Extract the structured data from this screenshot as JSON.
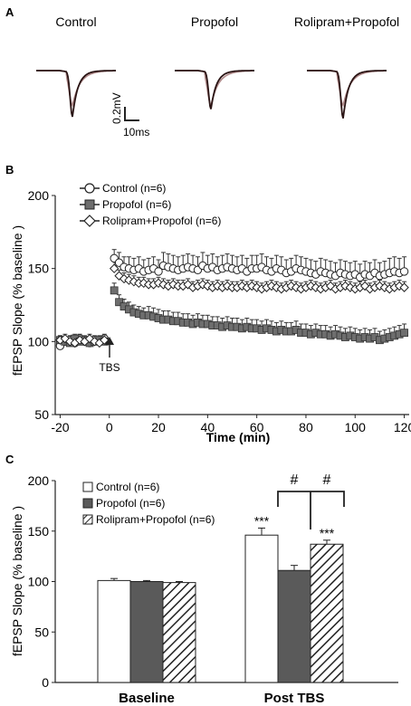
{
  "colors": {
    "control": "#ffffff",
    "propofol": "#5a5a5a",
    "rolipram": "#ffffff",
    "trace_base": "#2a1414",
    "trace_post": "#b08a8a",
    "axis": "#222222"
  },
  "panel_a": {
    "label": "A",
    "traces": [
      {
        "title": "Control",
        "base_peak_mv": -0.6,
        "post_peak_mv": -0.45
      },
      {
        "title": "Propofol",
        "base_peak_mv": -0.5,
        "post_peak_mv": -0.45
      },
      {
        "title": "Rolipram+Propofol",
        "base_peak_mv": -0.62,
        "post_peak_mv": -0.45
      }
    ],
    "scalebar": {
      "voltage": "0.2mV",
      "time": "10ms"
    }
  },
  "chart_data": [
    {
      "panel": "B",
      "type": "scatter",
      "xlabel": "Time (min)",
      "ylabel": "fEPSP Slope (% baseline )",
      "xlim": [
        -22,
        122
      ],
      "ylim": [
        50,
        200
      ],
      "xticks": [
        -20,
        0,
        20,
        40,
        60,
        80,
        100,
        120
      ],
      "yticks": [
        50,
        100,
        150,
        200
      ],
      "annotation": "TBS",
      "annotation_x": 0,
      "legend_position": "top-left",
      "series": [
        {
          "name": "Control (n=6)",
          "marker": "circle",
          "x": [
            -20,
            -18,
            -16,
            -14,
            -12,
            -10,
            -8,
            -6,
            -4,
            -2,
            2,
            4,
            6,
            8,
            10,
            12,
            14,
            16,
            18,
            20,
            22,
            24,
            26,
            28,
            30,
            32,
            34,
            36,
            38,
            40,
            42,
            44,
            46,
            48,
            50,
            52,
            54,
            56,
            58,
            60,
            62,
            64,
            66,
            68,
            70,
            72,
            74,
            76,
            78,
            80,
            82,
            84,
            86,
            88,
            90,
            92,
            94,
            96,
            98,
            100,
            102,
            104,
            106,
            108,
            110,
            112,
            114,
            116,
            118,
            120
          ],
          "y": [
            97,
            100,
            101,
            99,
            102,
            100,
            99,
            101,
            100,
            102,
            157,
            154,
            151,
            150,
            149,
            150,
            148,
            149,
            150,
            148,
            152,
            151,
            150,
            149,
            150,
            151,
            150,
            149,
            152,
            150,
            151,
            149,
            150,
            151,
            150,
            149,
            150,
            148,
            150,
            150,
            151,
            149,
            148,
            150,
            149,
            147,
            148,
            150,
            149,
            148,
            147,
            146,
            148,
            147,
            146,
            145,
            147,
            146,
            145,
            146,
            144,
            146,
            145,
            147,
            145,
            146,
            147,
            148,
            147,
            148
          ],
          "err": [
            3,
            3,
            3,
            3,
            3,
            3,
            3,
            3,
            3,
            3,
            6,
            7,
            7,
            8,
            8,
            8,
            8,
            8,
            8,
            8,
            9,
            9,
            9,
            9,
            9,
            9,
            9,
            9,
            9,
            9,
            9,
            9,
            9,
            9,
            9,
            9,
            9,
            9,
            9,
            9,
            9,
            9,
            9,
            9,
            9,
            9,
            9,
            9,
            9,
            9,
            9,
            9,
            9,
            9,
            9,
            9,
            9,
            9,
            9,
            9,
            9,
            9,
            9,
            9,
            9,
            9,
            10,
            10,
            10,
            10
          ]
        },
        {
          "name": "Propofol (n=6)",
          "marker": "square",
          "x": [
            -20,
            -18,
            -16,
            -14,
            -12,
            -10,
            -8,
            -6,
            -4,
            -2,
            2,
            4,
            6,
            8,
            10,
            12,
            14,
            16,
            18,
            20,
            22,
            24,
            26,
            28,
            30,
            32,
            34,
            36,
            38,
            40,
            42,
            44,
            46,
            48,
            50,
            52,
            54,
            56,
            58,
            60,
            62,
            64,
            66,
            68,
            70,
            72,
            74,
            76,
            78,
            80,
            82,
            84,
            86,
            88,
            90,
            92,
            94,
            96,
            98,
            100,
            102,
            104,
            106,
            108,
            110,
            112,
            114,
            116,
            118,
            120
          ],
          "y": [
            101,
            100,
            99,
            102,
            100,
            101,
            99,
            100,
            101,
            100,
            135,
            127,
            124,
            122,
            120,
            119,
            118,
            118,
            117,
            116,
            115,
            115,
            114,
            114,
            113,
            113,
            112,
            113,
            112,
            112,
            111,
            111,
            110,
            111,
            110,
            110,
            109,
            110,
            109,
            109,
            108,
            109,
            108,
            107,
            108,
            107,
            107,
            108,
            106,
            106,
            105,
            106,
            105,
            105,
            104,
            105,
            104,
            103,
            104,
            103,
            102,
            103,
            102,
            103,
            101,
            102,
            103,
            104,
            105,
            106
          ],
          "err": [
            3,
            3,
            3,
            3,
            3,
            3,
            3,
            3,
            3,
            3,
            5,
            5,
            5,
            5,
            5,
            5,
            5,
            6,
            6,
            6,
            6,
            6,
            6,
            6,
            6,
            6,
            6,
            6,
            6,
            6,
            6,
            6,
            6,
            6,
            6,
            6,
            6,
            6,
            6,
            6,
            6,
            6,
            6,
            6,
            6,
            6,
            6,
            6,
            6,
            6,
            6,
            6,
            6,
            6,
            6,
            6,
            6,
            6,
            6,
            6,
            6,
            6,
            6,
            6,
            6,
            6,
            6,
            6,
            6,
            6
          ]
        },
        {
          "name": "Rolipram+Propofol (n=6)",
          "marker": "diamond",
          "x": [
            -20,
            -18,
            -16,
            -14,
            -12,
            -10,
            -8,
            -6,
            -4,
            -2,
            2,
            4,
            6,
            8,
            10,
            12,
            14,
            16,
            18,
            20,
            22,
            24,
            26,
            28,
            30,
            32,
            34,
            36,
            38,
            40,
            42,
            44,
            46,
            48,
            50,
            52,
            54,
            56,
            58,
            60,
            62,
            64,
            66,
            68,
            70,
            72,
            74,
            76,
            78,
            80,
            82,
            84,
            86,
            88,
            90,
            92,
            94,
            96,
            98,
            100,
            102,
            104,
            106,
            108,
            110,
            112,
            114,
            116,
            118,
            120
          ],
          "y": [
            101,
            102,
            100,
            99,
            101,
            100,
            102,
            100,
            99,
            101,
            150,
            145,
            143,
            142,
            141,
            140,
            140,
            139,
            139,
            140,
            139,
            138,
            139,
            138,
            138,
            139,
            137,
            138,
            139,
            138,
            137,
            138,
            137,
            138,
            137,
            137,
            138,
            137,
            138,
            137,
            136,
            137,
            138,
            137,
            136,
            137,
            138,
            137,
            136,
            137,
            138,
            137,
            136,
            137,
            138,
            136,
            137,
            138,
            137,
            136,
            137,
            138,
            136,
            137,
            138,
            137,
            136,
            137,
            138,
            137
          ],
          "err": [
            3,
            3,
            3,
            3,
            3,
            3,
            3,
            3,
            3,
            3,
            5,
            4,
            4,
            4,
            4,
            4,
            4,
            4,
            4,
            4,
            4,
            4,
            4,
            4,
            4,
            4,
            4,
            4,
            4,
            4,
            4,
            4,
            4,
            4,
            4,
            4,
            4,
            4,
            4,
            4,
            4,
            4,
            4,
            4,
            4,
            4,
            4,
            4,
            4,
            4,
            4,
            4,
            4,
            4,
            4,
            4,
            4,
            4,
            4,
            4,
            4,
            4,
            4,
            4,
            4,
            4,
            4,
            4,
            4,
            4
          ]
        }
      ]
    },
    {
      "panel": "C",
      "type": "bar",
      "xlabel": "",
      "ylabel": "fEPSP Slope (% baseline )",
      "ylim": [
        0,
        200
      ],
      "yticks": [
        0,
        50,
        100,
        150,
        200
      ],
      "categories": [
        "Baseline",
        "Post TBS"
      ],
      "legend_position": "top-left",
      "series": [
        {
          "name": "Control (n=6)",
          "pattern": "white",
          "values": [
            101,
            146
          ],
          "err": [
            2,
            7
          ],
          "stars": [
            "",
            "***"
          ]
        },
        {
          "name": "Propofol (n=6)",
          "pattern": "gray",
          "values": [
            100,
            111
          ],
          "err": [
            1,
            5
          ],
          "stars": [
            "",
            ""
          ]
        },
        {
          "name": "Rolipram+Propofol (n=6)",
          "pattern": "hatch",
          "values": [
            99,
            137
          ],
          "err": [
            1,
            4
          ],
          "stars": [
            "",
            "***"
          ]
        }
      ],
      "significance": "#"
    }
  ]
}
